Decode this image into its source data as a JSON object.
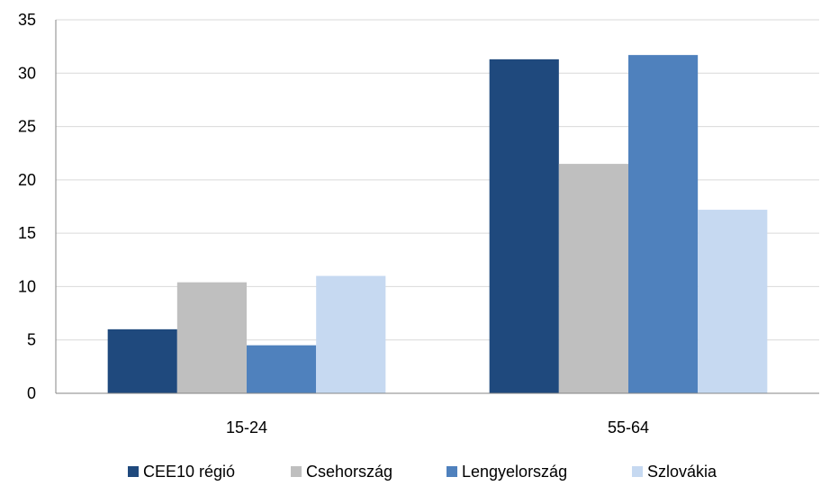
{
  "chart_data": {
    "type": "bar",
    "title": "",
    "xlabel": "",
    "ylabel": "",
    "categories": [
      "15-24",
      "55-64"
    ],
    "ylim": [
      0,
      35
    ],
    "yticks": [
      0,
      5,
      10,
      15,
      20,
      25,
      30,
      35
    ],
    "grid": true,
    "legend_position": "bottom",
    "series": [
      {
        "name": "CEE10 régió",
        "color": "#1f497d",
        "values": [
          6.0,
          31.3
        ]
      },
      {
        "name": "Csehország",
        "color": "#bfbfbf",
        "values": [
          10.4,
          21.5
        ]
      },
      {
        "name": "Lengyelország",
        "color": "#4f81bd",
        "values": [
          4.5,
          31.7
        ]
      },
      {
        "name": "Szlovákia",
        "color": "#c6d9f1",
        "values": [
          11.0,
          17.2
        ]
      }
    ]
  }
}
